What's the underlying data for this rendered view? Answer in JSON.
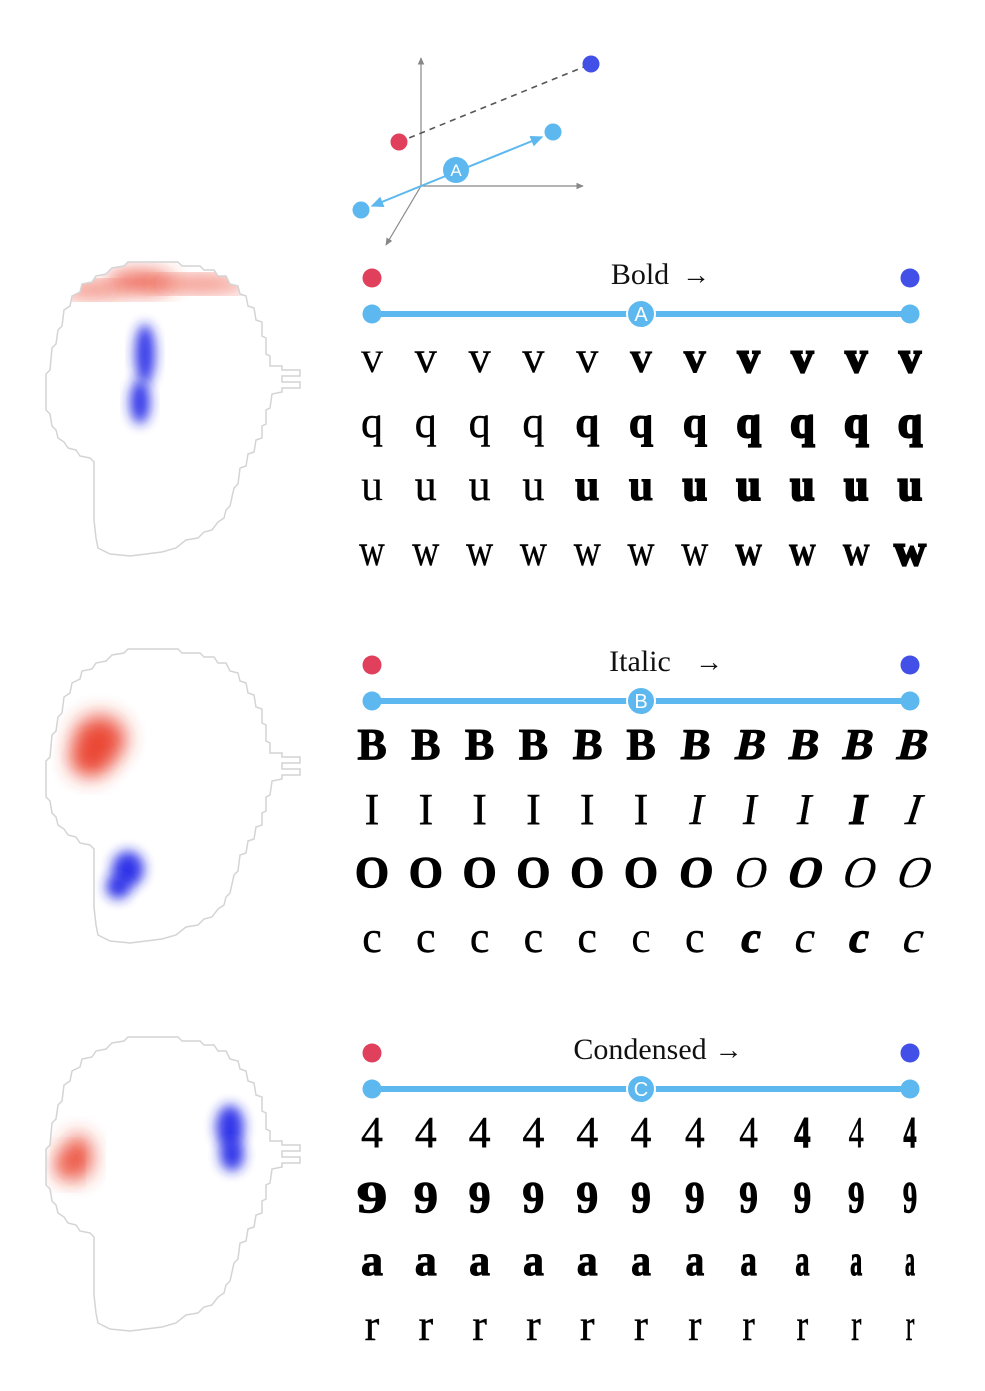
{
  "colors": {
    "endpoint_start": "#e0405c",
    "endpoint_end": "#4250e8",
    "axis_line": "#5cb8ee",
    "map_red": "#e8321e",
    "map_blue": "#1a22e6",
    "coord_axes": "#888888"
  },
  "coordinate_diagram": {
    "vector_label": "A"
  },
  "panels": [
    {
      "title": "Bold",
      "arrow": "→",
      "marker": "A",
      "glyph_style": "sans",
      "rows": [
        {
          "letter": "v",
          "weights": [
            300,
            400,
            400,
            400,
            500,
            600,
            700,
            800,
            800,
            900,
            900
          ],
          "slants": [
            0,
            0,
            0,
            0,
            0,
            0,
            0,
            0,
            0,
            0,
            0
          ],
          "widths": [
            1,
            1,
            1,
            1,
            1,
            1,
            1,
            1,
            1,
            1,
            1
          ]
        },
        {
          "letter": "q",
          "weights": [
            400,
            500,
            500,
            500,
            600,
            700,
            700,
            800,
            800,
            900,
            900
          ],
          "slants": [
            0,
            0,
            0,
            0,
            0,
            0,
            0,
            0,
            0,
            0,
            0
          ],
          "widths": [
            1,
            1,
            1,
            1,
            1,
            1,
            1,
            1,
            1,
            1,
            1
          ]
        },
        {
          "letter": "u",
          "weights": [
            300,
            500,
            400,
            400,
            700,
            700,
            800,
            800,
            800,
            900,
            900
          ],
          "slants": [
            0,
            0,
            0,
            0,
            0,
            0,
            0,
            0,
            0,
            0,
            0
          ],
          "widths": [
            1,
            1,
            1,
            1,
            1,
            1,
            1,
            1,
            1,
            1,
            1
          ]
        },
        {
          "letter": "w",
          "weights": [
            400,
            400,
            400,
            400,
            500,
            500,
            500,
            600,
            600,
            600,
            900
          ],
          "slants": [
            0,
            0,
            0,
            0,
            0,
            0,
            0,
            0,
            0,
            0,
            0
          ],
          "widths": [
            0.8,
            0.85,
            0.85,
            0.85,
            0.85,
            0.85,
            0.85,
            0.85,
            0.85,
            0.85,
            1
          ]
        }
      ]
    },
    {
      "title": "Italic",
      "arrow": "→",
      "marker": "B",
      "glyph_style": "sans",
      "rows": [
        {
          "letter": "B",
          "weights": [
            700,
            700,
            700,
            700,
            700,
            700,
            700,
            700,
            700,
            700,
            700
          ],
          "slants": [
            0,
            0,
            0,
            0,
            4,
            0,
            6,
            12,
            10,
            12,
            14
          ],
          "widths": [
            1,
            1,
            1,
            1,
            1,
            1,
            1,
            1,
            1,
            1,
            1
          ]
        },
        {
          "letter": "I",
          "weights": [
            400,
            400,
            400,
            400,
            400,
            400,
            400,
            400,
            400,
            700,
            400
          ],
          "slants": [
            0,
            0,
            0,
            0,
            0,
            0,
            10,
            8,
            10,
            10,
            18
          ],
          "widths": [
            1,
            1,
            1,
            1,
            1,
            1,
            1,
            1,
            1,
            1,
            1
          ],
          "font": "serif"
        },
        {
          "letter": "O",
          "weights": [
            700,
            700,
            700,
            700,
            700,
            700,
            700,
            400,
            700,
            400,
            400
          ],
          "slants": [
            0,
            0,
            0,
            0,
            0,
            0,
            6,
            12,
            14,
            16,
            20
          ],
          "widths": [
            1,
            1,
            1,
            1,
            1,
            1,
            1,
            1,
            1,
            1,
            1
          ]
        },
        {
          "letter": "c",
          "weights": [
            400,
            400,
            400,
            400,
            400,
            300,
            400,
            700,
            400,
            700,
            400
          ],
          "slants": [
            0,
            0,
            0,
            0,
            0,
            0,
            0,
            10,
            12,
            12,
            16
          ],
          "widths": [
            1,
            1,
            1,
            1,
            1,
            1,
            1,
            1,
            1,
            1,
            1
          ]
        }
      ]
    },
    {
      "title": "Condensed",
      "arrow": "→",
      "marker": "C",
      "glyph_style": "sans",
      "rows": [
        {
          "letter": "4",
          "weights": [
            400,
            400,
            400,
            400,
            400,
            400,
            400,
            400,
            700,
            400,
            700
          ],
          "slants": [
            0,
            0,
            0,
            0,
            0,
            0,
            0,
            0,
            0,
            0,
            0
          ],
          "widths": [
            1,
            1,
            1,
            1,
            1,
            0.95,
            0.9,
            0.85,
            0.75,
            0.7,
            0.6
          ],
          "font": "serif"
        },
        {
          "letter": "9",
          "weights": [
            700,
            700,
            700,
            700,
            700,
            700,
            700,
            700,
            700,
            700,
            700
          ],
          "slants": [
            0,
            0,
            0,
            0,
            0,
            0,
            0,
            0,
            0,
            0,
            0
          ],
          "widths": [
            1.4,
            1.1,
            1,
            1,
            1,
            0.9,
            0.9,
            0.85,
            0.8,
            0.75,
            0.65
          ],
          "font": "serif"
        },
        {
          "letter": "a",
          "weights": [
            700,
            700,
            700,
            700,
            700,
            700,
            700,
            700,
            700,
            700,
            700
          ],
          "slants": [
            0,
            0,
            0,
            0,
            0,
            0,
            0,
            0,
            0,
            0,
            0
          ],
          "widths": [
            1,
            1,
            0.95,
            0.95,
            0.95,
            0.9,
            0.85,
            0.75,
            0.65,
            0.55,
            0.45
          ]
        },
        {
          "letter": "r",
          "weights": [
            400,
            400,
            400,
            400,
            400,
            400,
            400,
            400,
            400,
            400,
            400
          ],
          "slants": [
            0,
            0,
            0,
            0,
            0,
            0,
            0,
            0,
            0,
            0,
            0
          ],
          "widths": [
            1,
            1,
            1,
            1,
            1,
            0.95,
            0.9,
            0.85,
            0.8,
            0.7,
            0.6
          ],
          "font": "serif"
        }
      ]
    }
  ]
}
